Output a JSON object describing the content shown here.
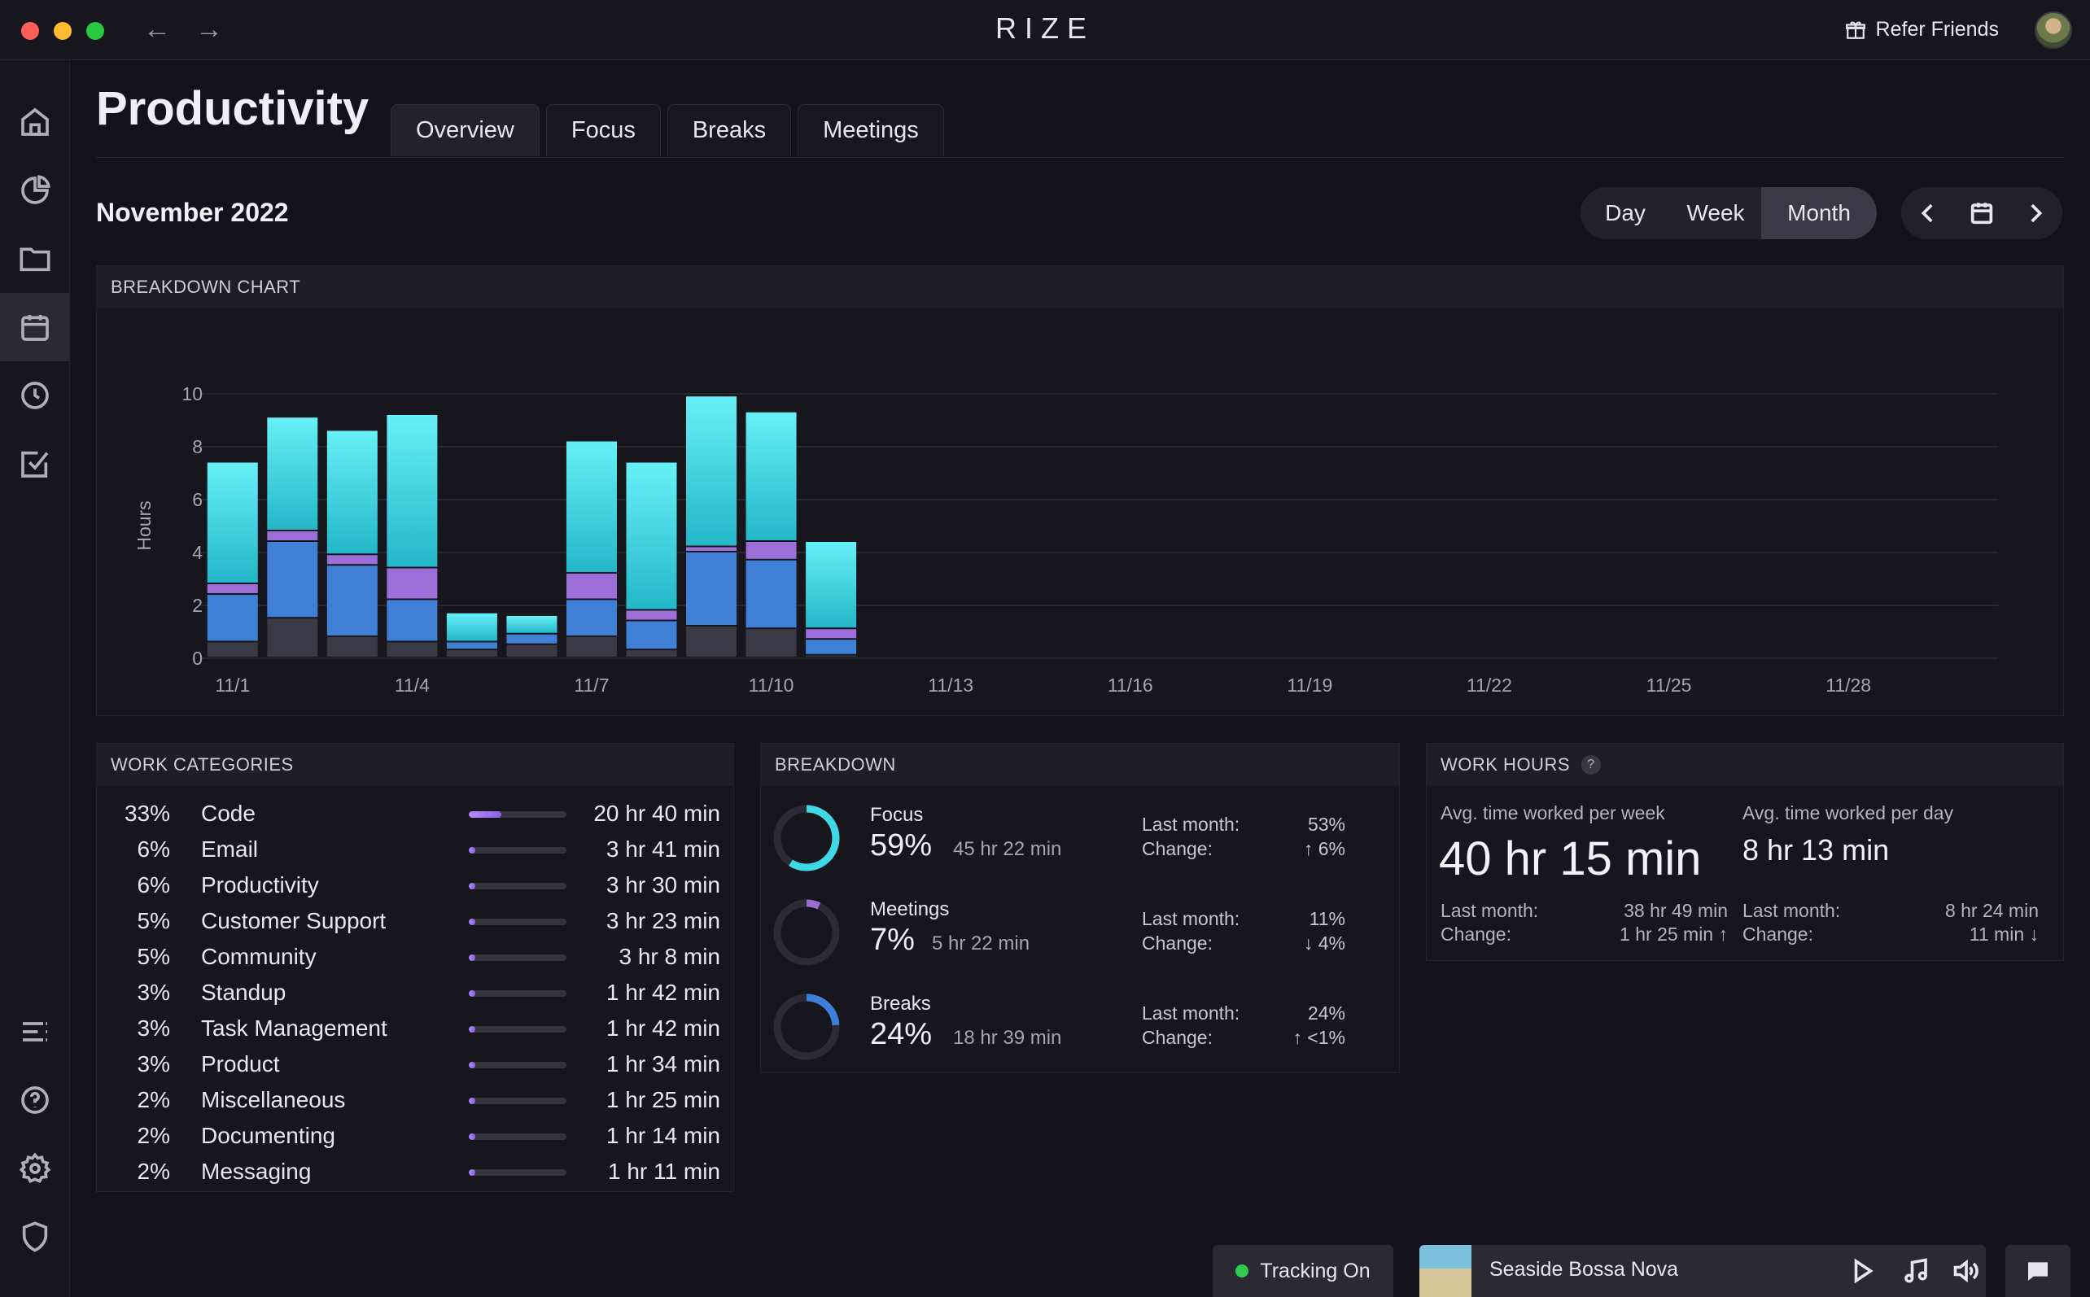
{
  "app": {
    "title": "RIZE",
    "refer_label": "Refer Friends"
  },
  "sidebar": {
    "items": [
      {
        "name": "home-icon"
      },
      {
        "name": "pie-chart-icon"
      },
      {
        "name": "folder-icon"
      },
      {
        "name": "calendar-icon",
        "active": true
      },
      {
        "name": "clock-icon"
      },
      {
        "name": "checkbox-icon"
      }
    ],
    "bottom_items": [
      {
        "name": "list-icon"
      },
      {
        "name": "help-icon"
      },
      {
        "name": "gear-icon"
      },
      {
        "name": "shield-icon"
      }
    ]
  },
  "header": {
    "title": "Productivity",
    "tabs": [
      {
        "label": "Overview",
        "active": true
      },
      {
        "label": "Focus"
      },
      {
        "label": "Breaks"
      },
      {
        "label": "Meetings"
      }
    ],
    "period": "November 2022",
    "ranges": [
      "Day",
      "Week",
      "Month"
    ],
    "active_range": "Month"
  },
  "breakdown_chart": {
    "heading": "BREAKDOWN CHART"
  },
  "chart_data": {
    "type": "bar",
    "stacked": true,
    "ylabel": "Hours",
    "ylim": [
      0,
      10
    ],
    "yticks": [
      0,
      2,
      4,
      6,
      8,
      10
    ],
    "xtick_labels": [
      "11/1",
      "11/4",
      "11/7",
      "11/10",
      "11/13",
      "11/16",
      "11/19",
      "11/22",
      "11/25",
      "11/28"
    ],
    "categories": [
      "11/1",
      "11/2",
      "11/3",
      "11/4",
      "11/5",
      "11/6",
      "11/7",
      "11/8",
      "11/9",
      "11/10",
      "11/11"
    ],
    "series": [
      {
        "color": "#3a3a44",
        "values": [
          0.6,
          1.5,
          0.8,
          0.6,
          0.3,
          0.5,
          0.8,
          0.3,
          1.2,
          1.1,
          0.1
        ]
      },
      {
        "color": "#3b7fd9",
        "values": [
          1.8,
          2.9,
          2.7,
          1.6,
          0.3,
          0.4,
          1.4,
          1.1,
          2.8,
          2.6,
          0.6
        ]
      },
      {
        "color": "#9b6bd6",
        "values": [
          0.4,
          0.4,
          0.4,
          1.2,
          0.0,
          0.0,
          1.0,
          0.4,
          0.2,
          0.7,
          0.4
        ]
      },
      {
        "color": "#3ed8e6",
        "values": [
          4.6,
          4.3,
          4.7,
          5.8,
          1.1,
          0.7,
          5.0,
          5.6,
          5.7,
          4.9,
          3.3
        ]
      }
    ]
  },
  "work_categories": {
    "heading": "WORK CATEGORIES",
    "rows": [
      {
        "pct": "33%",
        "name": "Code",
        "time": "20 hr 40 min",
        "fill": 0.33
      },
      {
        "pct": "6%",
        "name": "Email",
        "time": "3 hr 41 min",
        "fill": 0.06
      },
      {
        "pct": "6%",
        "name": "Productivity",
        "time": "3 hr 30 min",
        "fill": 0.06
      },
      {
        "pct": "5%",
        "name": "Customer Support",
        "time": "3 hr 23 min",
        "fill": 0.05
      },
      {
        "pct": "5%",
        "name": "Community",
        "time": "3 hr 8 min",
        "fill": 0.05
      },
      {
        "pct": "3%",
        "name": "Standup",
        "time": "1 hr 42 min",
        "fill": 0.03
      },
      {
        "pct": "3%",
        "name": "Task Management",
        "time": "1 hr 42 min",
        "fill": 0.03
      },
      {
        "pct": "3%",
        "name": "Product",
        "time": "1 hr 34 min",
        "fill": 0.03
      },
      {
        "pct": "2%",
        "name": "Miscellaneous",
        "time": "1 hr 25 min",
        "fill": 0.02
      },
      {
        "pct": "2%",
        "name": "Documenting",
        "time": "1 hr 14 min",
        "fill": 0.02
      },
      {
        "pct": "2%",
        "name": "Messaging",
        "time": "1 hr 11 min",
        "fill": 0.02
      }
    ]
  },
  "breakdown": {
    "heading": "BREAKDOWN",
    "last_month_label": "Last month:",
    "change_label": "Change:",
    "rows": [
      {
        "name": "Focus",
        "pct": "59%",
        "time": "45 hr 22 min",
        "last_month": "53%",
        "change": "↑ 6%",
        "fraction": 0.59,
        "color": "#3ed8e6"
      },
      {
        "name": "Meetings",
        "pct": "7%",
        "time": "5 hr 22 min",
        "last_month": "11%",
        "change": "↓ 4%",
        "fraction": 0.07,
        "color": "#9b6bd6"
      },
      {
        "name": "Breaks",
        "pct": "24%",
        "time": "18 hr 39 min",
        "last_month": "24%",
        "change": "↑ <1%",
        "fraction": 0.24,
        "color": "#3b7fd9"
      }
    ]
  },
  "work_hours": {
    "heading": "WORK HOURS",
    "help_label": "?",
    "week": {
      "caption": "Avg. time worked per week",
      "value": "40 hr 15 min",
      "last_month": "38 hr 49 min",
      "change": "1 hr 25 min ↑"
    },
    "day": {
      "caption": "Avg. time worked per day",
      "value": "8 hr 13 min",
      "last_month": "8 hr 24 min",
      "change": "11 min ↓"
    },
    "last_month_label": "Last month:",
    "change_label": "Change:"
  },
  "footer": {
    "tracking_label": "Tracking On",
    "song": "Seaside Bossa Nova"
  }
}
